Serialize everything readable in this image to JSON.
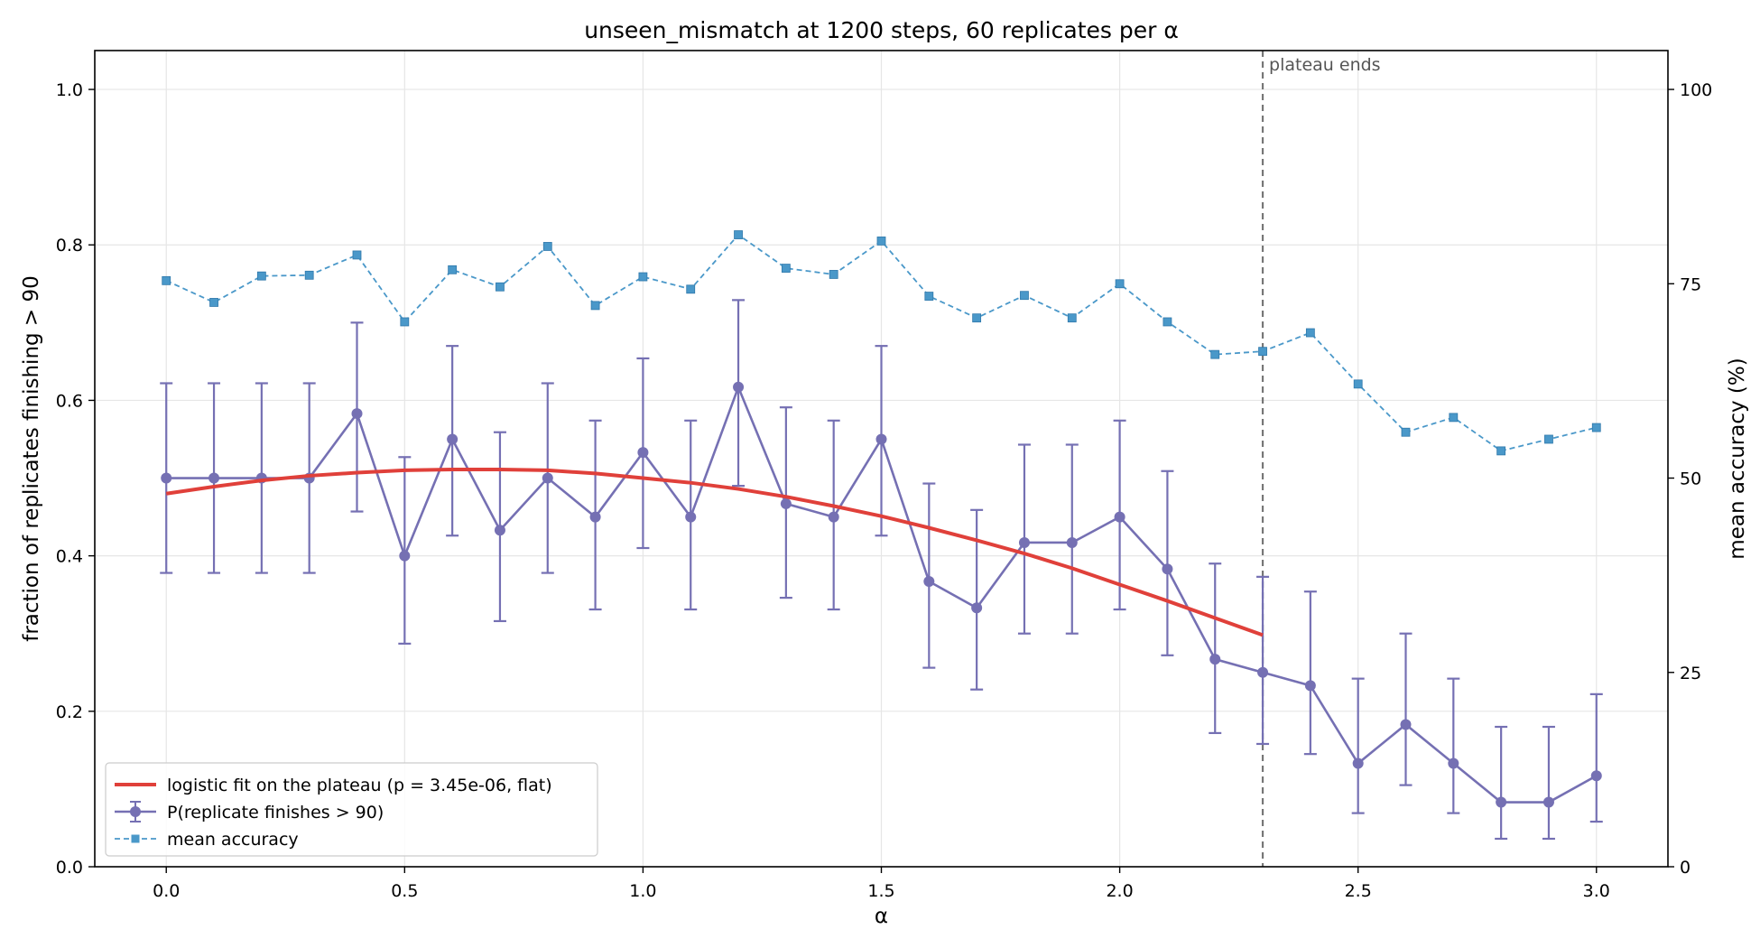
{
  "chart_data": {
    "type": "line",
    "title": "unseen_mismatch at 1200 steps, 60 replicates per α",
    "xlabel": "α",
    "ylabel": "fraction of replicates finishing > 90",
    "ylabel_right": "mean accuracy (%)",
    "xlim": [
      -0.15,
      3.15
    ],
    "ylim": [
      0,
      1.05
    ],
    "ylim_right": [
      0,
      105
    ],
    "x_ticks": [
      "0.0",
      "0.5",
      "1.0",
      "1.5",
      "2.0",
      "2.5",
      "3.0"
    ],
    "y_ticks": [
      "0.0",
      "0.2",
      "0.4",
      "0.6",
      "0.8",
      "1.0"
    ],
    "y_ticks_right": [
      "0",
      "25",
      "50",
      "75",
      "100"
    ],
    "grid": true,
    "legend_position": "lower-left",
    "x": [
      0.0,
      0.1,
      0.2,
      0.3,
      0.4,
      0.5,
      0.6,
      0.7,
      0.8,
      0.9,
      1.0,
      1.1,
      1.2,
      1.3,
      1.4,
      1.5,
      1.6,
      1.7,
      1.8,
      1.9,
      2.0,
      2.1,
      2.2,
      2.3,
      2.4,
      2.5,
      2.6,
      2.7,
      2.8,
      2.9,
      3.0
    ],
    "series": [
      {
        "name": "P(replicate finishes > 90)",
        "axis": "left",
        "color": "#7570b3",
        "values": [
          0.5,
          0.5,
          0.5,
          0.5,
          0.583,
          0.4,
          0.55,
          0.433,
          0.5,
          0.45,
          0.533,
          0.45,
          0.617,
          0.467,
          0.45,
          0.55,
          0.367,
          0.333,
          0.417,
          0.417,
          0.45,
          0.383,
          0.267,
          0.25,
          0.233,
          0.133,
          0.183,
          0.133,
          0.083,
          0.083,
          0.117
        ],
        "err_low": [
          0.378,
          0.378,
          0.378,
          0.378,
          0.457,
          0.287,
          0.426,
          0.316,
          0.378,
          0.331,
          0.41,
          0.331,
          0.49,
          0.346,
          0.331,
          0.426,
          0.256,
          0.228,
          0.3,
          0.3,
          0.331,
          0.272,
          0.172,
          0.158,
          0.145,
          0.069,
          0.105,
          0.069,
          0.036,
          0.036,
          0.058
        ],
        "err_high": [
          0.622,
          0.622,
          0.622,
          0.622,
          0.7,
          0.527,
          0.67,
          0.559,
          0.622,
          0.574,
          0.654,
          0.574,
          0.729,
          0.591,
          0.574,
          0.67,
          0.493,
          0.459,
          0.543,
          0.543,
          0.574,
          0.509,
          0.39,
          0.373,
          0.354,
          0.242,
          0.3,
          0.242,
          0.18,
          0.18,
          0.222
        ]
      },
      {
        "name": "mean accuracy",
        "axis": "right",
        "color": "#4a98c9",
        "values": [
          75.4,
          72.6,
          76.0,
          76.1,
          78.7,
          70.1,
          76.8,
          74.6,
          79.8,
          72.2,
          75.9,
          74.3,
          81.3,
          77.0,
          76.2,
          80.5,
          73.4,
          70.6,
          73.5,
          70.6,
          75.0,
          70.1,
          65.9,
          66.3,
          68.7,
          62.1,
          55.9,
          57.8,
          53.5,
          55.0,
          56.5
        ]
      },
      {
        "name": "logistic fit on the plateau (p = 3.45e-06, flat)",
        "axis": "left",
        "color": "#e0403a",
        "x": [
          0.0,
          0.1,
          0.2,
          0.3,
          0.4,
          0.5,
          0.6,
          0.7,
          0.8,
          0.9,
          1.0,
          1.1,
          1.2,
          1.3,
          1.4,
          1.5,
          1.6,
          1.7,
          1.8,
          1.9,
          2.0,
          2.1,
          2.2,
          2.3
        ],
        "values": [
          0.48,
          0.489,
          0.497,
          0.503,
          0.507,
          0.51,
          0.511,
          0.511,
          0.51,
          0.506,
          0.5,
          0.494,
          0.486,
          0.476,
          0.464,
          0.451,
          0.436,
          0.42,
          0.403,
          0.384,
          0.363,
          0.342,
          0.32,
          0.298
        ]
      }
    ],
    "annotations": [
      {
        "type": "vline",
        "x": 2.3,
        "text": "plateau ends",
        "color": "#777777"
      }
    ]
  }
}
